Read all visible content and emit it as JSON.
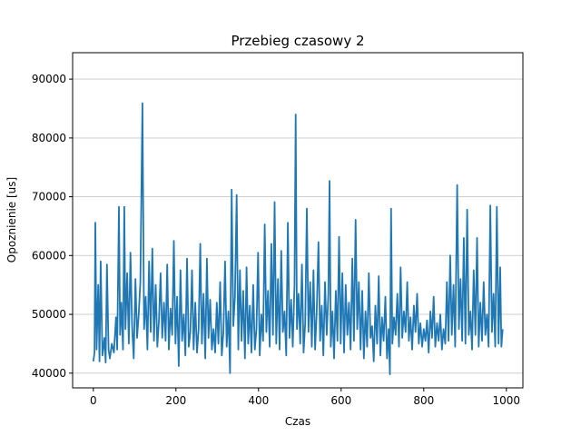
{
  "chart_data": {
    "type": "line",
    "title": "Przebieg czasowy 2",
    "xlabel": "Czas",
    "ylabel": "Opoznienie [us]",
    "xlim": [
      -50,
      1040
    ],
    "ylim": [
      37500,
      94500
    ],
    "xticks": [
      0,
      200,
      400,
      600,
      800,
      1000
    ],
    "xtick_labels": [
      "0",
      "200",
      "400",
      "600",
      "800",
      "1000"
    ],
    "yticks": [
      40000,
      50000,
      60000,
      70000,
      80000,
      90000
    ],
    "ytick_labels": [
      "40000",
      "50000",
      "60000",
      "70000",
      "80000",
      "90000"
    ],
    "grid": "horizontal",
    "line_color": "#1f77b4",
    "series": [
      {
        "name": "",
        "anchors": [
          [
            0,
            42000
          ],
          [
            3,
            43500
          ],
          [
            5,
            65600
          ],
          [
            8,
            44000
          ],
          [
            12,
            55000
          ],
          [
            15,
            42000
          ],
          [
            18,
            59000
          ],
          [
            22,
            43000
          ],
          [
            27,
            46000
          ],
          [
            30,
            41800
          ],
          [
            33,
            58500
          ],
          [
            37,
            44000
          ],
          [
            40,
            42500
          ],
          [
            45,
            45000
          ],
          [
            50,
            43500
          ],
          [
            55,
            49500
          ],
          [
            58,
            44000
          ],
          [
            62,
            68300
          ],
          [
            65,
            46500
          ],
          [
            68,
            52000
          ],
          [
            72,
            44000
          ],
          [
            75,
            68300
          ],
          [
            78,
            47500
          ],
          [
            82,
            57000
          ],
          [
            86,
            45000
          ],
          [
            90,
            60500
          ],
          [
            94,
            48000
          ],
          [
            98,
            42500
          ],
          [
            102,
            56000
          ],
          [
            106,
            46000
          ],
          [
            110,
            50000
          ],
          [
            114,
            55500
          ],
          [
            119,
            85900
          ],
          [
            123,
            47500
          ],
          [
            127,
            53000
          ],
          [
            131,
            44000
          ],
          [
            135,
            59000
          ],
          [
            139,
            47000
          ],
          [
            143,
            61200
          ],
          [
            147,
            45500
          ],
          [
            151,
            55000
          ],
          [
            155,
            44500
          ],
          [
            159,
            49000
          ],
          [
            163,
            57000
          ],
          [
            167,
            46000
          ],
          [
            171,
            52000
          ],
          [
            175,
            45500
          ],
          [
            179,
            58500
          ],
          [
            183,
            44000
          ],
          [
            187,
            51000
          ],
          [
            191,
            46500
          ],
          [
            195,
            62500
          ],
          [
            199,
            45000
          ],
          [
            203,
            53000
          ],
          [
            207,
            41200
          ],
          [
            211,
            57500
          ],
          [
            215,
            45500
          ],
          [
            219,
            50000
          ],
          [
            223,
            43000
          ],
          [
            227,
            59500
          ],
          [
            231,
            44500
          ],
          [
            235,
            47000
          ],
          [
            239,
            57500
          ],
          [
            243,
            44000
          ],
          [
            247,
            52000
          ],
          [
            251,
            43500
          ],
          [
            255,
            47500
          ],
          [
            259,
            62000
          ],
          [
            263,
            45000
          ],
          [
            267,
            53500
          ],
          [
            271,
            42500
          ],
          [
            275,
            59500
          ],
          [
            279,
            46000
          ],
          [
            283,
            52500
          ],
          [
            287,
            44000
          ],
          [
            291,
            47500
          ],
          [
            295,
            43500
          ],
          [
            299,
            52000
          ],
          [
            303,
            45000
          ],
          [
            307,
            55500
          ],
          [
            311,
            43000
          ],
          [
            315,
            47000
          ],
          [
            319,
            59000
          ],
          [
            323,
            44500
          ],
          [
            327,
            50500
          ],
          [
            331,
            40000
          ],
          [
            335,
            71200
          ],
          [
            339,
            48000
          ],
          [
            343,
            53000
          ],
          [
            347,
            70300
          ],
          [
            351,
            44000
          ],
          [
            355,
            57500
          ],
          [
            359,
            45500
          ],
          [
            363,
            54000
          ],
          [
            367,
            42500
          ],
          [
            371,
            58000
          ],
          [
            375,
            45000
          ],
          [
            379,
            51500
          ],
          [
            383,
            43500
          ],
          [
            387,
            55000
          ],
          [
            391,
            44000
          ],
          [
            395,
            47500
          ],
          [
            399,
            60500
          ],
          [
            403,
            43000
          ],
          [
            407,
            50000
          ],
          [
            411,
            45500
          ],
          [
            415,
            65300
          ],
          [
            419,
            47000
          ],
          [
            423,
            54000
          ],
          [
            427,
            44500
          ],
          [
            431,
            62000
          ],
          [
            435,
            46500
          ],
          [
            439,
            69100
          ],
          [
            443,
            45000
          ],
          [
            447,
            56000
          ],
          [
            451,
            44000
          ],
          [
            455,
            60800
          ],
          [
            459,
            47000
          ],
          [
            463,
            50500
          ],
          [
            467,
            43000
          ],
          [
            471,
            65600
          ],
          [
            475,
            46000
          ],
          [
            479,
            52500
          ],
          [
            483,
            44500
          ],
          [
            487,
            55000
          ],
          [
            490,
            84000
          ],
          [
            493,
            47500
          ],
          [
            497,
            53500
          ],
          [
            501,
            45000
          ],
          [
            505,
            58500
          ],
          [
            509,
            43500
          ],
          [
            513,
            48500
          ],
          [
            517,
            68000
          ],
          [
            521,
            47000
          ],
          [
            525,
            55500
          ],
          [
            529,
            44500
          ],
          [
            533,
            57500
          ],
          [
            537,
            44000
          ],
          [
            541,
            50500
          ],
          [
            545,
            62300
          ],
          [
            549,
            45500
          ],
          [
            553,
            51500
          ],
          [
            557,
            43000
          ],
          [
            561,
            55500
          ],
          [
            565,
            46500
          ],
          [
            569,
            53500
          ],
          [
            572,
            72700
          ],
          [
            575,
            44500
          ],
          [
            579,
            50500
          ],
          [
            583,
            42500
          ],
          [
            587,
            54000
          ],
          [
            591,
            45500
          ],
          [
            595,
            63200
          ],
          [
            599,
            45000
          ],
          [
            603,
            57000
          ],
          [
            607,
            43500
          ],
          [
            611,
            55000
          ],
          [
            615,
            46500
          ],
          [
            619,
            52000
          ],
          [
            623,
            44000
          ],
          [
            627,
            59500
          ],
          [
            631,
            45500
          ],
          [
            635,
            66100
          ],
          [
            639,
            47500
          ],
          [
            643,
            55500
          ],
          [
            647,
            44000
          ],
          [
            651,
            54000
          ],
          [
            655,
            42500
          ],
          [
            659,
            50500
          ],
          [
            663,
            44500
          ],
          [
            667,
            57000
          ],
          [
            671,
            46000
          ],
          [
            675,
            48000
          ],
          [
            679,
            42000
          ],
          [
            683,
            51500
          ],
          [
            687,
            45000
          ],
          [
            691,
            56500
          ],
          [
            695,
            43000
          ],
          [
            699,
            49500
          ],
          [
            703,
            45500
          ],
          [
            707,
            53000
          ],
          [
            711,
            42500
          ],
          [
            715,
            47500
          ],
          [
            718,
            39800
          ],
          [
            721,
            68000
          ],
          [
            724,
            45000
          ],
          [
            728,
            49500
          ],
          [
            732,
            46500
          ],
          [
            736,
            53500
          ],
          [
            740,
            44500
          ],
          [
            744,
            58000
          ],
          [
            748,
            46000
          ],
          [
            752,
            50500
          ],
          [
            756,
            47000
          ],
          [
            760,
            55500
          ],
          [
            764,
            45500
          ],
          [
            768,
            49500
          ],
          [
            772,
            44000
          ],
          [
            776,
            51500
          ],
          [
            780,
            47000
          ],
          [
            784,
            53500
          ],
          [
            788,
            45000
          ],
          [
            792,
            48500
          ],
          [
            796,
            44500
          ],
          [
            800,
            47500
          ],
          [
            804,
            45500
          ],
          [
            808,
            49000
          ],
          [
            812,
            43500
          ],
          [
            816,
            50500
          ],
          [
            820,
            46000
          ],
          [
            824,
            53000
          ],
          [
            828,
            44500
          ],
          [
            832,
            48500
          ],
          [
            836,
            45500
          ],
          [
            840,
            50000
          ],
          [
            844,
            44000
          ],
          [
            848,
            47500
          ],
          [
            852,
            45000
          ],
          [
            856,
            55500
          ],
          [
            860,
            45500
          ],
          [
            864,
            60000
          ],
          [
            868,
            46500
          ],
          [
            872,
            55000
          ],
          [
            876,
            44500
          ],
          [
            881,
            72000
          ],
          [
            885,
            47500
          ],
          [
            889,
            56000
          ],
          [
            893,
            45500
          ],
          [
            897,
            63000
          ],
          [
            901,
            45000
          ],
          [
            905,
            67800
          ],
          [
            909,
            46500
          ],
          [
            913,
            50500
          ],
          [
            917,
            44000
          ],
          [
            921,
            57500
          ],
          [
            925,
            46500
          ],
          [
            929,
            63000
          ],
          [
            933,
            44500
          ],
          [
            937,
            52000
          ],
          [
            941,
            45500
          ],
          [
            945,
            55500
          ],
          [
            949,
            46500
          ],
          [
            953,
            50000
          ],
          [
            957,
            44500
          ],
          [
            961,
            68500
          ],
          [
            965,
            47000
          ],
          [
            969,
            53500
          ],
          [
            973,
            44500
          ],
          [
            977,
            68300
          ],
          [
            981,
            45000
          ],
          [
            985,
            58000
          ],
          [
            988,
            44500
          ],
          [
            991,
            47500
          ]
        ]
      }
    ]
  }
}
